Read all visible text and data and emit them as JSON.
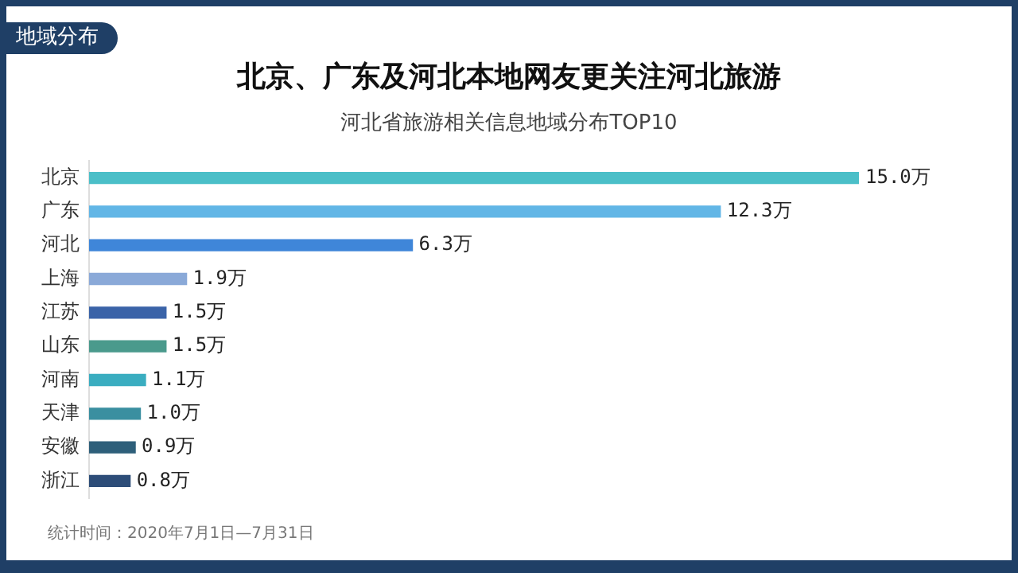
{
  "chart_data": {
    "type": "bar",
    "orientation": "horizontal",
    "title": "北京、广东及河北本地网友更关注河北旅游",
    "subtitle": "河北省旅游相关信息地域分布TOP10",
    "categories": [
      "北京",
      "广东",
      "河北",
      "上海",
      "江苏",
      "山东",
      "河南",
      "天津",
      "安徽",
      "浙江"
    ],
    "values": [
      15.0,
      12.3,
      6.3,
      1.9,
      1.5,
      1.5,
      1.1,
      1.0,
      0.9,
      0.8
    ],
    "value_labels": [
      "15.0万",
      "12.3万",
      "6.3万",
      "1.9万",
      "1.5万",
      "1.5万",
      "1.1万",
      "1.0万",
      "0.9万",
      "0.8万"
    ],
    "colors": [
      "#4bbfc8",
      "#62b6e6",
      "#3f86d9",
      "#8aa9d8",
      "#3a63a8",
      "#4a9a8c",
      "#3aadc0",
      "#3a8fa0",
      "#2e5f7a",
      "#2d4d78"
    ],
    "annotations": [
      "地域分布",
      "统计时间：2020年7月1日—7月31日"
    ]
  }
}
